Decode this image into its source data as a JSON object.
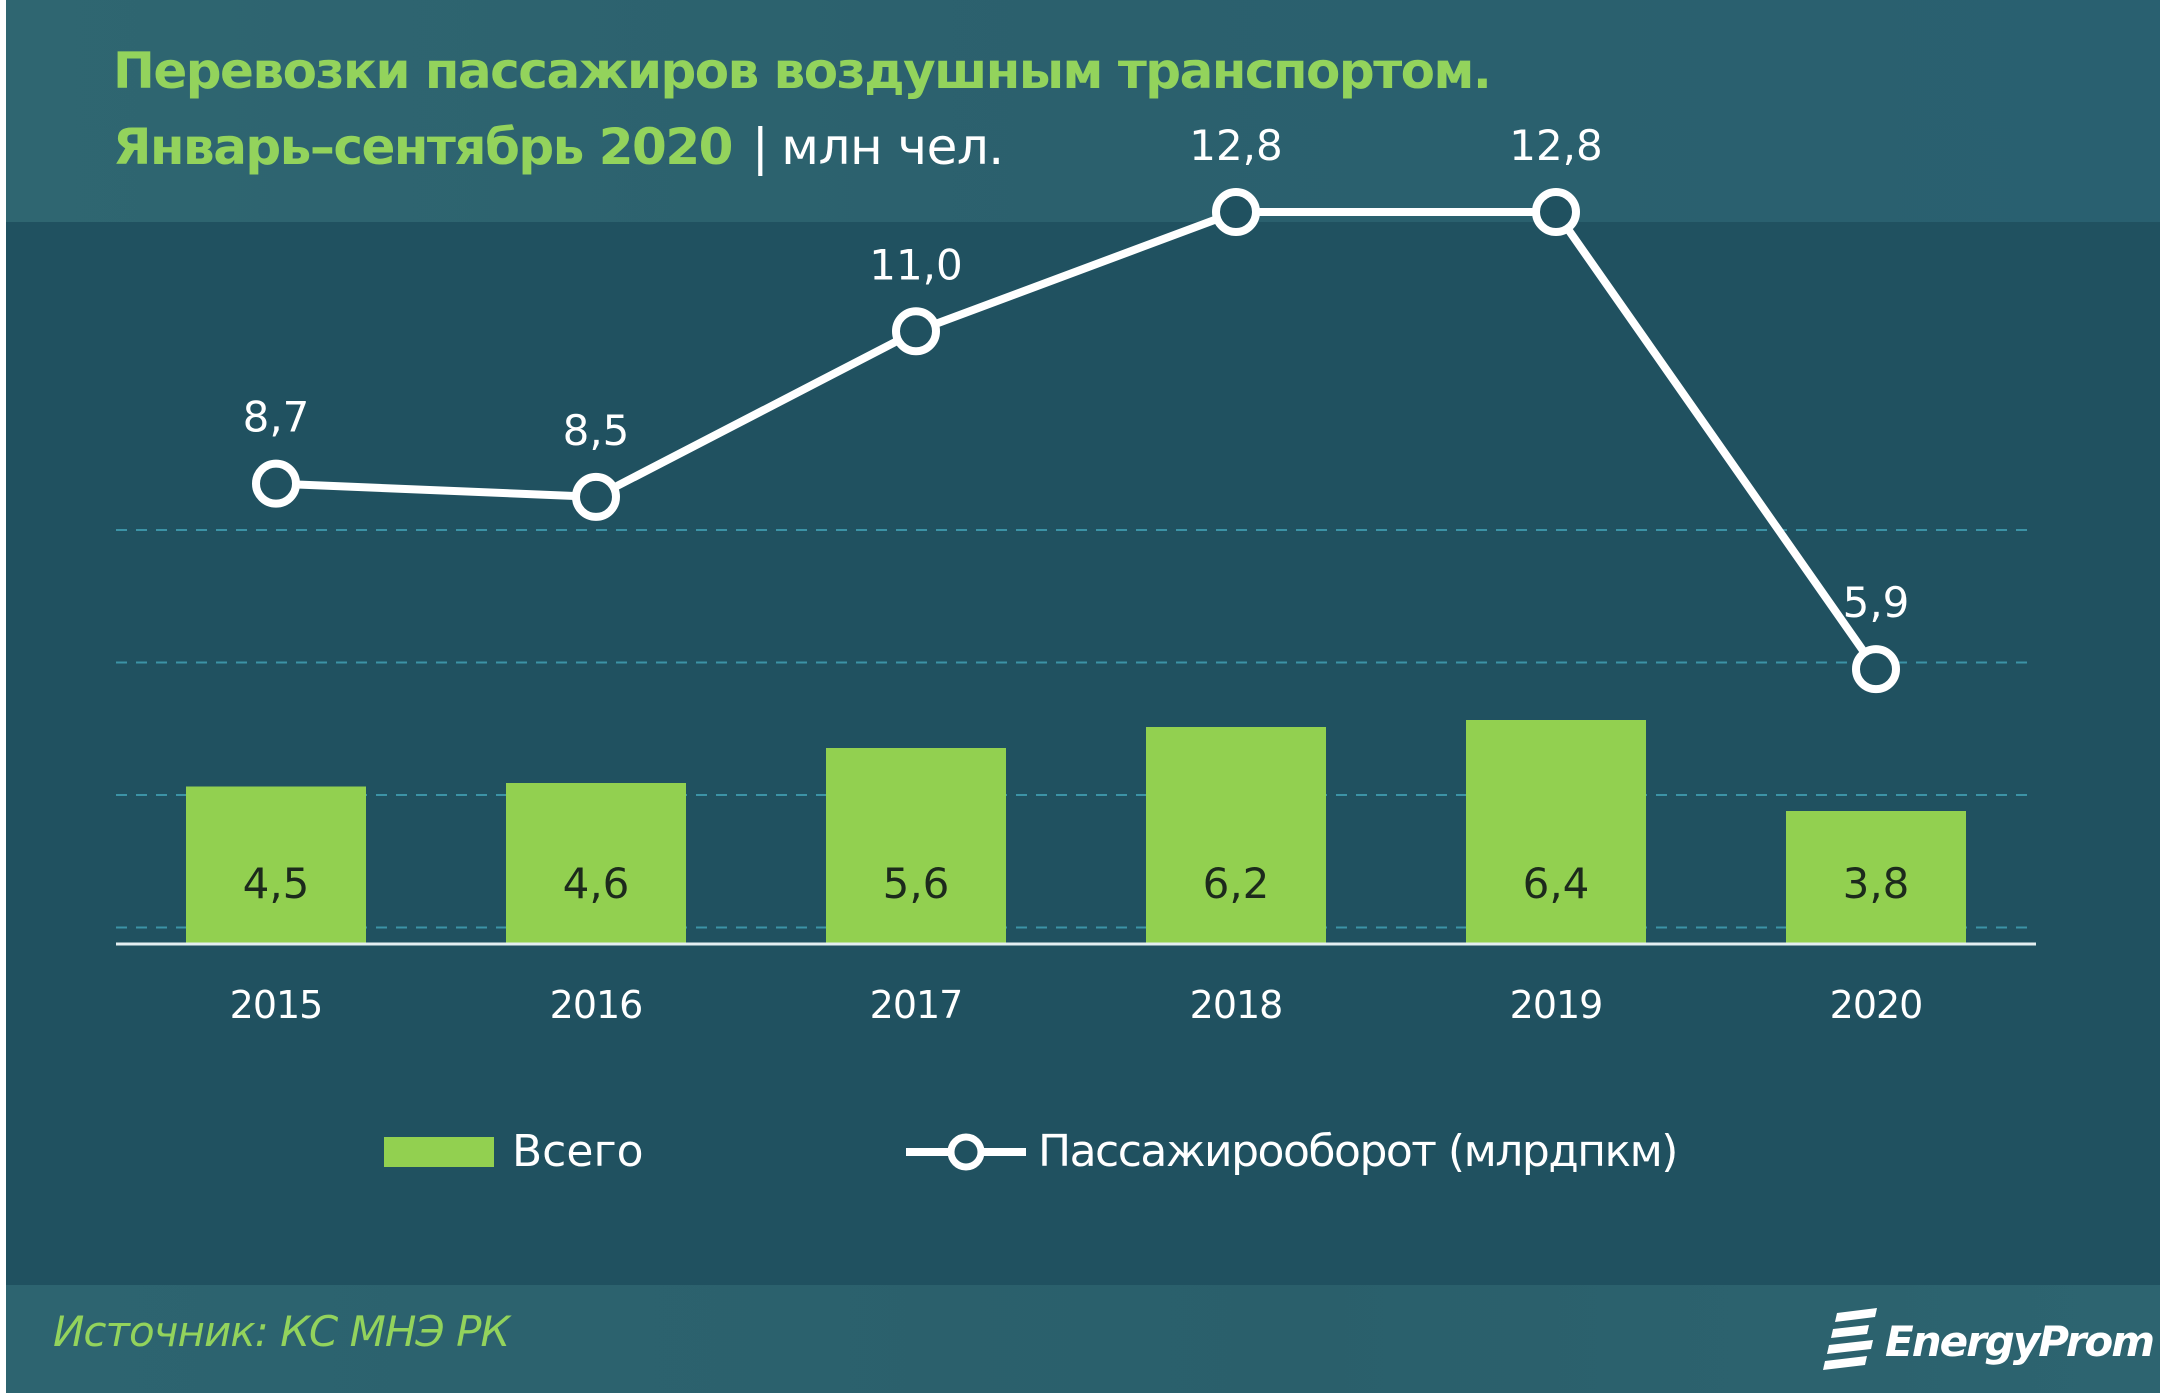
{
  "header": {
    "title_line1": "Перевозки пассажиров воздушным транспортом.",
    "title_line2": "Январь–сентябрь 2020",
    "separator": "|",
    "unit": "млн чел."
  },
  "chart_data": {
    "type": "bar",
    "categories": [
      "2015",
      "2016",
      "2017",
      "2018",
      "2019",
      "2020"
    ],
    "series": [
      {
        "name": "Всего",
        "type": "bar",
        "values": [
          4.5,
          4.6,
          5.6,
          6.2,
          6.4,
          3.8
        ],
        "labels": [
          "4,5",
          "4,6",
          "5,6",
          "6,2",
          "6,4",
          "3,8"
        ]
      },
      {
        "name": "Пассажирооборот (млрдпкм)",
        "type": "line",
        "values": [
          8.7,
          8.5,
          11.0,
          12.8,
          12.8,
          5.9
        ],
        "labels": [
          "8,7",
          "8,5",
          "11,0",
          "12,8",
          "12,8",
          "5,9"
        ]
      }
    ],
    "ylim": [
      0,
      16
    ],
    "grid": true,
    "legend": "bottom-center",
    "colors": {
      "bar": "#92d050",
      "line": "#ffffff",
      "grid": "#3c93a6",
      "axis": "#e4eef1"
    }
  },
  "footer": {
    "source": "Источник: КС МНЭ РК",
    "brand": "EnergyProm"
  }
}
